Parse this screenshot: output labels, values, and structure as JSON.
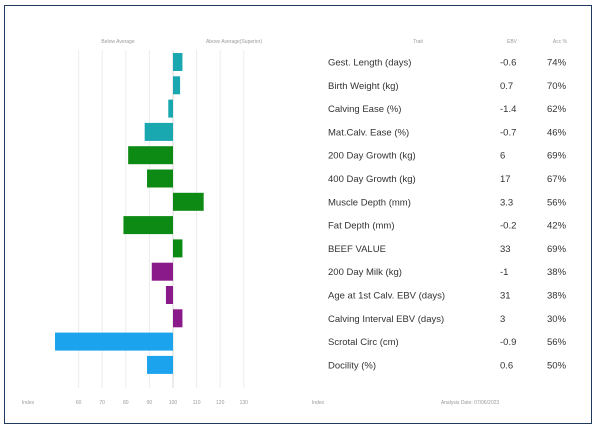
{
  "header": {
    "below_average": "Below Average",
    "above_average": "Above Average(Superior)",
    "trait_col": "Trait",
    "ebv_col": "EBV",
    "acc_col": "Acc %"
  },
  "chart_data": {
    "type": "bar",
    "orientation": "horizontal",
    "baseline": 100,
    "xlim": [
      40,
      160
    ],
    "x_ticks": [
      "60",
      "70",
      "80",
      "90",
      "100",
      "110",
      "120",
      "130"
    ],
    "x_left_label": "Index",
    "x_right_label": "Index",
    "categories": [
      "Gest. Length (days)",
      "Birth Weight (kg)",
      "Calving Ease (%)",
      "Mat.Calv. Ease (%)",
      "200 Day Growth (kg)",
      "400 Day Growth (kg)",
      "Muscle Depth (mm)",
      "Fat Depth (mm)",
      "BEEF VALUE",
      "200 Day Milk (kg)",
      "Age at 1st Calv. EBV (days)",
      "Calving Interval EBV (days)",
      "Scrotal Circ (cm)",
      "Docility (%)"
    ],
    "values": [
      104,
      103,
      98,
      88,
      81,
      89,
      113,
      79,
      104,
      91,
      97,
      104,
      50,
      89
    ],
    "colors": [
      "#19a7b0",
      "#19a7b0",
      "#19a7b0",
      "#19a7b0",
      "#0d8a14",
      "#0d8a14",
      "#0d8a14",
      "#0d8a14",
      "#0d8a14",
      "#8a1a8a",
      "#8a1a8a",
      "#8a1a8a",
      "#1ca3ee",
      "#1ca3ee"
    ],
    "ebv": [
      "-0.6",
      "0.7",
      "-1.4",
      "-0.7",
      "6",
      "17",
      "3.3",
      "-0.2",
      "33",
      "-1",
      "31",
      "3",
      "-0.9",
      "0.6"
    ],
    "acc": [
      "74%",
      "70%",
      "62%",
      "46%",
      "69%",
      "67%",
      "56%",
      "42%",
      "69%",
      "38%",
      "38%",
      "30%",
      "56%",
      "50%"
    ]
  },
  "footer": {
    "analysis_date": "Analysis Date: 07/06/2023"
  }
}
